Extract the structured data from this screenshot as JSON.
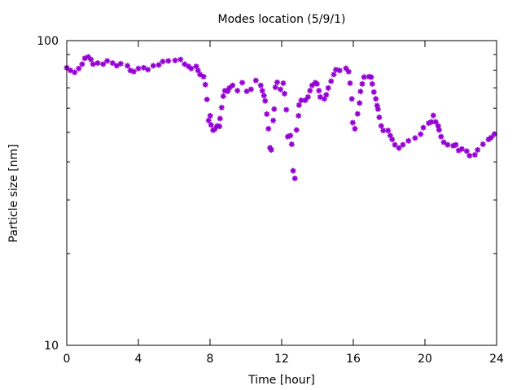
{
  "chart_data": {
    "type": "scatter",
    "title": "Modes location (5/9/1)",
    "xlabel": "Time [hour]",
    "ylabel": "Particle size [nm]",
    "xlim": [
      0,
      24
    ],
    "ylim": [
      10,
      100
    ],
    "yscale": "log",
    "xticks": [
      "0",
      "4",
      "8",
      "12",
      "16",
      "20",
      "24"
    ],
    "xtick_values": [
      0,
      4,
      8,
      12,
      16,
      20,
      24
    ],
    "yticks": [
      "10",
      "100"
    ],
    "ytick_values": [
      10,
      100
    ],
    "grid": false,
    "series": [
      {
        "name": "modes",
        "color": "#9400d3",
        "marker": "asterisk",
        "x": [
          0,
          0.21,
          0.44,
          0.67,
          0.86,
          1.01,
          1.2,
          1.35,
          1.47,
          1.73,
          2.03,
          2.26,
          2.56,
          2.79,
          3.01,
          3.39,
          3.55,
          3.74,
          4.0,
          4.3,
          4.53,
          4.83,
          5.14,
          5.36,
          5.67,
          6.05,
          6.35,
          6.58,
          6.8,
          6.95,
          7.23,
          7.33,
          7.44,
          7.64,
          7.74,
          7.83,
          7.92,
          8.01,
          8.06,
          8.17,
          8.26,
          8.4,
          8.53,
          8.56,
          8.65,
          8.74,
          8.83,
          8.99,
          9.08,
          9.26,
          9.53,
          9.8,
          10.05,
          10.29,
          10.56,
          10.83,
          10.92,
          11.01,
          11.08,
          11.17,
          11.26,
          11.35,
          11.42,
          11.53,
          11.58,
          11.65,
          11.75,
          11.93,
          12.09,
          12.16,
          12.26,
          12.34,
          12.49,
          12.56,
          12.64,
          12.74,
          12.83,
          12.94,
          12.97,
          13.09,
          13.32,
          13.47,
          13.58,
          13.7,
          13.88,
          13.97,
          14.08,
          14.15,
          14.38,
          14.49,
          14.6,
          14.76,
          14.91,
          15.03,
          15.24,
          15.59,
          15.74,
          15.82,
          15.92,
          15.97,
          16.09,
          16.24,
          16.35,
          16.4,
          16.5,
          16.6,
          16.88,
          17.0,
          17.06,
          17.15,
          17.26,
          17.33,
          17.38,
          17.45,
          17.56,
          17.67,
          17.94,
          18.06,
          18.17,
          18.32,
          18.55,
          18.77,
          19.08,
          19.45,
          19.76,
          19.91,
          20.21,
          20.36,
          20.47,
          20.6,
          20.74,
          20.79,
          20.9,
          21.05,
          21.27,
          21.58,
          21.73,
          21.88,
          22.06,
          22.33,
          22.49,
          22.79,
          22.94,
          23.24,
          23.55,
          23.7,
          23.88
        ],
        "y": [
          81.5,
          79.8,
          78.7,
          81.0,
          83.7,
          87.5,
          88.4,
          86.7,
          83.7,
          84.4,
          83.7,
          85.8,
          84.4,
          82.7,
          84.0,
          82.7,
          79.8,
          79.1,
          81.0,
          81.5,
          80.3,
          82.7,
          83.2,
          85.4,
          85.8,
          86.1,
          86.7,
          83.7,
          82.3,
          81.0,
          82.3,
          79.8,
          77.4,
          76.2,
          71.7,
          64.1,
          54.7,
          56.7,
          52.9,
          50.8,
          51.2,
          52.5,
          52.3,
          55.5,
          60.3,
          65.7,
          68.5,
          68.2,
          69.9,
          71.3,
          68.5,
          72.8,
          68.2,
          69.2,
          74.0,
          71.3,
          68.5,
          66.0,
          63.4,
          57.4,
          51.4,
          44.5,
          43.8,
          54.7,
          59.6,
          70.3,
          73.0,
          69.2,
          72.5,
          67.0,
          59.3,
          48.4,
          48.8,
          45.7,
          37.4,
          35.3,
          50.9,
          56.7,
          61.4,
          63.7,
          63.7,
          65.3,
          68.5,
          71.3,
          72.8,
          72.1,
          68.5,
          65.3,
          64.4,
          66.4,
          69.9,
          73.6,
          77.4,
          80.3,
          79.8,
          81.1,
          79.1,
          72.5,
          64.4,
          53.8,
          51.4,
          57.5,
          62.4,
          68.1,
          72.1,
          75.9,
          76.2,
          75.9,
          72.1,
          67.8,
          64.4,
          61.2,
          59.6,
          56.0,
          52.5,
          50.7,
          50.7,
          48.8,
          47.4,
          45.5,
          44.4,
          45.5,
          46.9,
          47.9,
          49.3,
          51.8,
          53.6,
          54.1,
          56.8,
          54.1,
          52.5,
          50.9,
          48.4,
          46.4,
          45.5,
          45.2,
          45.5,
          43.6,
          44.1,
          43.4,
          41.9,
          42.2,
          43.8,
          45.7,
          47.4,
          48.1,
          49.3
        ]
      }
    ]
  }
}
